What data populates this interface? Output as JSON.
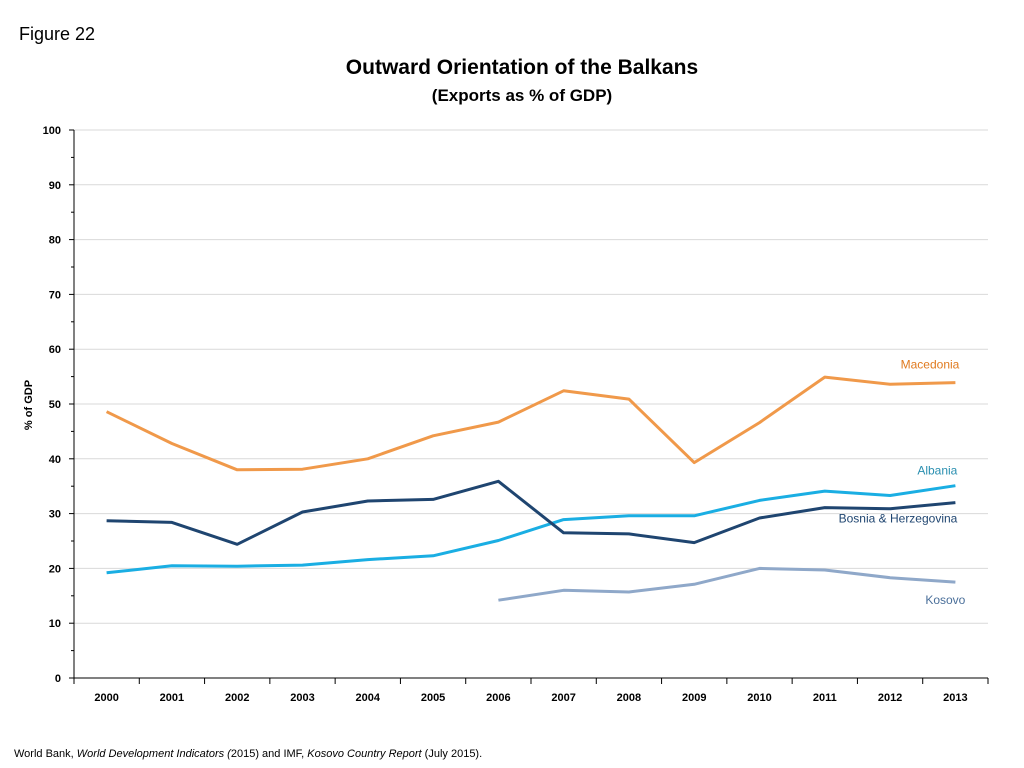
{
  "figure_label": "Figure 22",
  "source": {
    "prefix": "World Bank, ",
    "wdi": "World Development Indicators (",
    "mid": "2015) and IMF, ",
    "kcr": "Kosovo Country Report",
    "suffix": " (July 2015)."
  },
  "colors": {
    "Macedonia": "#f0994a",
    "Albania": "#1aaee3",
    "Bosnia & Herzegovina": "#1f4570",
    "Kosovo": "#8fa8c9",
    "grid": "#d9d9d9",
    "axis": "#000000"
  },
  "chart_data": {
    "type": "line",
    "title": "Outward Orientation of the Balkans",
    "subtitle": "(Exports as % of GDP)",
    "xlabel": "",
    "ylabel": "% of GDP",
    "ylim": [
      0,
      100
    ],
    "yticks": [
      "0",
      "10",
      "20",
      "30",
      "40",
      "50",
      "60",
      "70",
      "80",
      "90",
      "100"
    ],
    "categories": [
      "2000",
      "2001",
      "2002",
      "2003",
      "2004",
      "2005",
      "2006",
      "2007",
      "2008",
      "2009",
      "2010",
      "2011",
      "2012",
      "2013"
    ],
    "grid": true,
    "series": [
      {
        "name": "Macedonia",
        "values": [
          48.6,
          42.8,
          38.0,
          38.1,
          40.0,
          44.2,
          46.7,
          52.4,
          50.9,
          39.3,
          46.6,
          54.9,
          53.6,
          53.9
        ]
      },
      {
        "name": "Albania",
        "values": [
          19.2,
          20.5,
          20.4,
          20.6,
          21.6,
          22.3,
          25.1,
          28.9,
          29.6,
          29.6,
          32.4,
          34.1,
          33.3,
          35.1
        ]
      },
      {
        "name": "Bosnia & Herzegovina",
        "values": [
          28.7,
          28.4,
          24.4,
          30.3,
          32.3,
          32.6,
          35.9,
          26.5,
          26.3,
          24.7,
          29.2,
          31.1,
          30.9,
          32.0
        ]
      },
      {
        "name": "Kosovo",
        "values": [
          null,
          null,
          null,
          null,
          null,
          null,
          14.2,
          16.0,
          15.7,
          17.1,
          20.0,
          19.7,
          18.3,
          17.5
        ]
      }
    ]
  }
}
